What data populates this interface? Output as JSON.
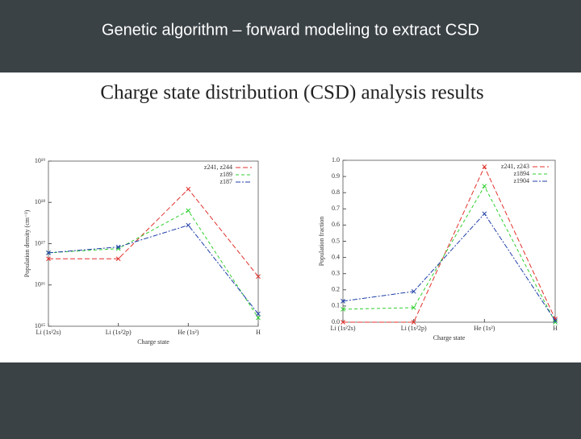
{
  "slide": {
    "title": "Genetic algorithm – forward modeling to extract CSD",
    "subtitle": "Charge state distribution (CSD) analysis results"
  },
  "chart_data": [
    {
      "type": "line",
      "log_y": true,
      "xlabel": "Charge state",
      "ylabel": "Population density (cm⁻³)",
      "categories": [
        "Li (1s²2s)",
        "Li (1s²2p)",
        "He (1s²)",
        "H"
      ],
      "ylim": [
        1000000000000000.0,
        1e+19
      ],
      "yticks": [
        {
          "value": 1000000000000000.0,
          "label": "10¹⁵"
        },
        {
          "value": 1e+16,
          "label": "10¹⁶"
        },
        {
          "value": 1e+17,
          "label": "10¹⁷"
        },
        {
          "value": 1e+18,
          "label": "10¹⁸"
        },
        {
          "value": 1e+19,
          "label": "10¹⁹"
        }
      ],
      "legend": "upper right",
      "series": [
        {
          "name": "z241, z244",
          "color": "#e0312c",
          "values": [
            4.3e+16,
            4.3e+16,
            2.1e+18,
            1.6e+16
          ]
        },
        {
          "name": "z189",
          "color": "#2fcf2f",
          "values": [
            6e+16,
            7.6e+16,
            6.3e+17,
            1600000000000000.0
          ]
        },
        {
          "name": "z187",
          "color": "#1f3fa8",
          "values": [
            6e+16,
            8.3e+16,
            2.8e+17,
            2000000000000000.0
          ]
        }
      ]
    },
    {
      "type": "line",
      "log_y": false,
      "xlabel": "Charge state",
      "ylabel": "Population fraction",
      "categories": [
        "Li (1s²2s)",
        "Li (1s²2p)",
        "He (1s²)",
        "H"
      ],
      "ylim": [
        0,
        1
      ],
      "yticks": [
        {
          "value": 0,
          "label": "0.0"
        },
        0.1,
        0.2,
        0.3,
        0.4,
        0.5,
        0.6,
        0.7,
        0.8,
        0.9,
        {
          "value": 1,
          "label": "1.0"
        }
      ],
      "legend": "upper right",
      "series": [
        {
          "name": "z241, z243",
          "color": "#e0312c",
          "values": [
            0,
            0,
            0.96,
            0.02
          ]
        },
        {
          "name": "z1894",
          "color": "#2fcf2f",
          "values": [
            0.08,
            0.09,
            0.84,
            0
          ]
        },
        {
          "name": "z1904",
          "color": "#1f3fa8",
          "values": [
            0.13,
            0.19,
            0.67,
            0.01
          ]
        }
      ]
    }
  ]
}
